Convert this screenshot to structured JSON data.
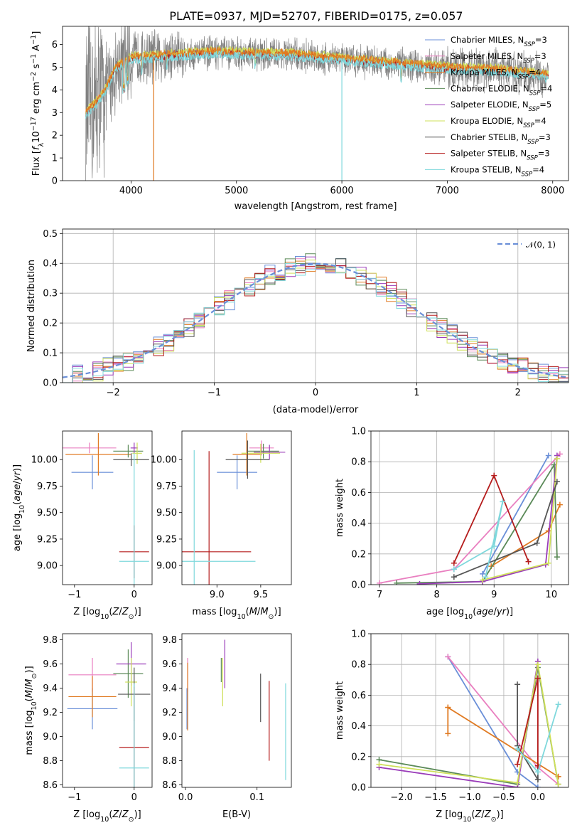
{
  "figure": {
    "title": "PLATE=0937, MJD=52707, FIBERID=0175, z=0.057"
  },
  "colors": [
    "#6a8fd8",
    "#e97fc0",
    "#e07a22",
    "#5b8a58",
    "#9a3cb9",
    "#cfe05a",
    "#555555",
    "#b51c1c",
    "#7fd8dc"
  ],
  "legend": [
    {
      "label": "Chabrier MILES, N",
      "sub": "SSP",
      "suffix": "=3"
    },
    {
      "label": "Salpeter MILES, N",
      "sub": "SSP",
      "suffix": "=3"
    },
    {
      "label": "Kroupa MILES, N",
      "sub": "SSP",
      "suffix": "=4"
    },
    {
      "label": "Chabrier ELODIE, N",
      "sub": "SSP",
      "suffix": "=4"
    },
    {
      "label": "Salpeter ELODIE, N",
      "sub": "SSP",
      "suffix": "=5"
    },
    {
      "label": "Kroupa ELODIE, N",
      "sub": "SSP",
      "suffix": "=4"
    },
    {
      "label": "Chabrier STELIB, N",
      "sub": "SSP",
      "suffix": "=3"
    },
    {
      "label": "Salpeter STELIB, N",
      "sub": "SSP",
      "suffix": "=3"
    },
    {
      "label": "Kroupa STELIB, N",
      "sub": "SSP",
      "suffix": "=4"
    }
  ],
  "normal_legend": "𝒩(0, 1)",
  "chart_data": [
    {
      "type": "line",
      "id": "spectrum",
      "xlabel": "wavelength [Angstrom, rest frame]",
      "ylabel": "Flux [f_λ 10^-17 erg cm^-2 s^-1 A^-1]",
      "xlim": [
        3350,
        8150
      ],
      "ylim": [
        0,
        6.8
      ],
      "xticks": [
        4000,
        5000,
        6000,
        7000,
        8000
      ],
      "yticks": [
        0,
        1,
        2,
        3,
        4,
        5,
        6
      ],
      "grid": false,
      "legend_position": "top-right",
      "continuum_knots": {
        "x": [
          3570,
          3650,
          3750,
          3850,
          3950,
          4000,
          4200,
          4500,
          4800,
          5000,
          5500,
          6000,
          6500,
          7000,
          7500,
          7800,
          7950
        ],
        "y": [
          3.0,
          3.3,
          3.9,
          4.9,
          5.3,
          5.4,
          5.45,
          5.55,
          5.65,
          5.6,
          5.55,
          5.35,
          5.15,
          4.95,
          4.85,
          4.7,
          4.6
        ]
      },
      "deep_features_x": [
        4215,
        6000
      ]
    },
    {
      "type": "histogram",
      "id": "residuals",
      "xlabel": "(data-model)/error",
      "ylabel": "Normed distribution",
      "xlim": [
        -2.5,
        2.5
      ],
      "ylim": [
        0,
        0.515
      ],
      "xticks": [
        -2,
        -1,
        0,
        1,
        2
      ],
      "yticks": [
        0.0,
        0.1,
        0.2,
        0.3,
        0.4,
        0.5
      ],
      "bin_width": 0.1,
      "grid": true,
      "legend_position": "top-right",
      "reference_curve": "normal(0,1)"
    },
    {
      "type": "errorbar",
      "id": "age_vs_Z",
      "xlabel": "Z [log10(Z/Z⊙)]",
      "ylabel": "age [log10(age/yr)]",
      "xlim": [
        -1.2,
        0.3
      ],
      "ylim": [
        8.82,
        10.27
      ],
      "xticks": [
        -1,
        0
      ],
      "yticks": [
        9.0,
        9.25,
        9.5,
        9.75,
        10.0
      ],
      "points": [
        {
          "x": -0.7,
          "y": 9.88,
          "xerr": 0.35,
          "yerr": 0.16
        },
        {
          "x": -0.75,
          "y": 10.11,
          "xerr": 0.45,
          "yerr": 0.05
        },
        {
          "x": -0.6,
          "y": 10.05,
          "xerr": 0.55,
          "yerr": 0.2
        },
        {
          "x": -0.1,
          "y": 10.08,
          "xerr": 0.25,
          "yerr": 0.06
        },
        {
          "x": 0.0,
          "y": 10.11,
          "xerr": 0.06,
          "yerr": 0.05
        },
        {
          "x": 0.05,
          "y": 10.06,
          "xerr": 0.08,
          "yerr": 0.1
        },
        {
          "x": -0.05,
          "y": 10.0,
          "xerr": 0.3,
          "yerr": 0.06
        },
        {
          "x": 0.0,
          "y": 9.13,
          "xerr": 0.25,
          "yerr": 0.25
        },
        {
          "x": 0.0,
          "y": 9.04,
          "xerr": 0.25,
          "yerr": 1.02
        }
      ]
    },
    {
      "type": "errorbar",
      "id": "age_vs_mass",
      "xlabel": "mass [log10(M/M⊙)]",
      "ylabel": "",
      "xlim": [
        8.6,
        9.85
      ],
      "ylim": [
        8.82,
        10.27
      ],
      "xticks": [
        9.0,
        9.5
      ],
      "yticks": [
        9.0,
        9.25,
        9.5,
        9.75,
        10.0
      ],
      "points": [
        {
          "x": 9.23,
          "y": 9.88,
          "xerr": 0.23,
          "yerr": 0.16
        },
        {
          "x": 9.51,
          "y": 10.11,
          "xerr": 0.14,
          "yerr": 0.07
        },
        {
          "x": 9.34,
          "y": 10.05,
          "xerr": 0.16,
          "yerr": 0.2
        },
        {
          "x": 9.53,
          "y": 10.08,
          "xerr": 0.18,
          "yerr": 0.07
        },
        {
          "x": 9.6,
          "y": 10.07,
          "xerr": 0.18,
          "yerr": 0.07
        },
        {
          "x": 9.5,
          "y": 10.06,
          "xerr": 0.22,
          "yerr": 0.09
        },
        {
          "x": 9.35,
          "y": 10.0,
          "xerr": 0.25,
          "yerr": 0.18
        },
        {
          "x": 8.91,
          "y": 9.13,
          "xerr": 0.48,
          "yerr": 0.95
        },
        {
          "x": 8.74,
          "y": 9.04,
          "xerr": 0.7,
          "yerr": 1.05
        }
      ]
    },
    {
      "type": "line",
      "id": "massweight_vs_age",
      "xlabel": "age [log10(age/yr)]",
      "ylabel": "mass weight",
      "xlim": [
        6.85,
        10.3
      ],
      "ylim": [
        0,
        1
      ],
      "xticks": [
        7,
        8,
        9,
        10
      ],
      "yticks": [
        0.0,
        0.2,
        0.4,
        0.6,
        0.8,
        1.0
      ],
      "grid": true,
      "series": [
        {
          "x": [
            8.8,
            9.95
          ],
          "y": [
            0.07,
            0.84
          ]
        },
        {
          "x": [
            7.0,
            8.3,
            10.15
          ],
          "y": [
            0.01,
            0.1,
            0.85
          ]
        },
        {
          "x": [
            8.95,
            9.95,
            10.15
          ],
          "y": [
            0.12,
            0.35,
            0.52
          ]
        },
        {
          "x": [
            7.3,
            8.8,
            10.05,
            10.1
          ],
          "y": [
            0.01,
            0.02,
            0.78,
            0.18
          ]
        },
        {
          "x": [
            7.7,
            8.8,
            9.9,
            10.1
          ],
          "y": [
            0.005,
            0.02,
            0.13,
            0.84
          ]
        },
        {
          "x": [
            8.8,
            9.95,
            10.1
          ],
          "y": [
            0.03,
            0.14,
            0.82
          ]
        },
        {
          "x": [
            8.3,
            9.75,
            10.1
          ],
          "y": [
            0.05,
            0.27,
            0.67
          ]
        },
        {
          "x": [
            8.3,
            9.0,
            9.6
          ],
          "y": [
            0.14,
            0.71,
            0.15
          ]
        },
        {
          "x": [
            8.3,
            9.0,
            9.15,
            8.85
          ],
          "y": [
            0.1,
            0.25,
            0.54,
            0.05
          ]
        }
      ]
    },
    {
      "type": "errorbar",
      "id": "mass_vs_Z",
      "xlabel": "Z [log10(Z/Z⊙)]",
      "ylabel": "mass [log10(M/M⊙)]",
      "xlim": [
        -1.2,
        0.3
      ],
      "ylim": [
        8.58,
        9.85
      ],
      "xticks": [
        -1,
        0
      ],
      "yticks": [
        8.6,
        8.8,
        9.0,
        9.2,
        9.4,
        9.6,
        9.8
      ],
      "points": [
        {
          "x": -0.7,
          "y": 9.23,
          "xerr": 0.42,
          "yerr": 0.17
        },
        {
          "x": -0.7,
          "y": 9.51,
          "xerr": 0.4,
          "yerr": 0.14
        },
        {
          "x": -0.7,
          "y": 9.33,
          "xerr": 0.4,
          "yerr": 0.17
        },
        {
          "x": -0.1,
          "y": 9.52,
          "xerr": 0.25,
          "yerr": 0.2
        },
        {
          "x": -0.05,
          "y": 9.6,
          "xerr": 0.25,
          "yerr": 0.18
        },
        {
          "x": -0.05,
          "y": 9.45,
          "xerr": 0.1,
          "yerr": 0.2
        },
        {
          "x": 0.0,
          "y": 9.35,
          "xerr": 0.27,
          "yerr": 0.22
        },
        {
          "x": 0.0,
          "y": 8.91,
          "xerr": 0.25,
          "yerr": 0.5
        },
        {
          "x": 0.0,
          "y": 8.74,
          "xerr": 0.25,
          "yerr": 0.7
        }
      ]
    },
    {
      "type": "errorbar",
      "id": "mass_vs_ebv",
      "xlabel": "E(B-V)",
      "ylabel": "",
      "xlim": [
        -0.005,
        0.148
      ],
      "ylim": [
        8.58,
        9.85
      ],
      "xticks": [
        0.0,
        0.1
      ],
      "yticks": [
        8.6,
        8.8,
        9.0,
        9.2,
        9.4,
        9.6,
        9.8
      ],
      "points": [
        {
          "x": 0.002,
          "y": 9.23,
          "yerr": 0.17
        },
        {
          "x": 0.003,
          "y": 9.51,
          "yerr": 0.14
        },
        {
          "x": 0.003,
          "y": 9.33,
          "yerr": 0.28
        },
        {
          "x": 0.05,
          "y": 9.55,
          "yerr": 0.1
        },
        {
          "x": 0.055,
          "y": 9.6,
          "yerr": 0.2
        },
        {
          "x": 0.052,
          "y": 9.45,
          "yerr": 0.2
        },
        {
          "x": 0.105,
          "y": 9.32,
          "yerr": 0.2
        },
        {
          "x": 0.117,
          "y": 9.13,
          "yerr": 0.33
        },
        {
          "x": 0.14,
          "y": 9.04,
          "yerr": 0.4
        }
      ]
    },
    {
      "type": "line",
      "id": "massweight_vs_Z",
      "xlabel": "Z [log10(Z/Z⊙)]",
      "ylabel": "mass weight",
      "xlim": [
        -2.45,
        0.45
      ],
      "ylim": [
        0,
        1
      ],
      "xticks": [
        -2.0,
        -1.5,
        -1.0,
        -0.5,
        0.0
      ],
      "yticks": [
        0.0,
        0.2,
        0.4,
        0.6,
        0.8,
        1.0
      ],
      "grid": true,
      "series": [
        {
          "x": [
            -1.32,
            -0.3,
            0.0
          ],
          "y": [
            0.85,
            0.1,
            0.0
          ]
        },
        {
          "x": [
            -1.32,
            0.0,
            0.3
          ],
          "y": [
            0.85,
            0.13,
            0.02
          ]
        },
        {
          "x": [
            -1.32,
            -1.32,
            -1.32,
            0.3,
            0.3
          ],
          "y": [
            0.52,
            0.35,
            0.52,
            0.07,
            0.07
          ]
        },
        {
          "x": [
            -2.33,
            -0.3,
            0.0,
            0.3
          ],
          "y": [
            0.18,
            0.02,
            0.78,
            0.02
          ]
        },
        {
          "x": [
            -2.33,
            -0.3,
            0.0
          ],
          "y": [
            0.13,
            0.0,
            0.82
          ]
        },
        {
          "x": [
            -2.33,
            -0.3,
            0.0,
            0.3
          ],
          "y": [
            0.15,
            0.03,
            0.8,
            0.02
          ]
        },
        {
          "x": [
            -0.3,
            -0.3,
            0.0,
            0.0
          ],
          "y": [
            0.67,
            0.27,
            0.05,
            0.14
          ]
        },
        {
          "x": [
            -0.3,
            0.0,
            0.0
          ],
          "y": [
            0.15,
            0.71,
            0.14
          ]
        },
        {
          "x": [
            -0.3,
            0.0,
            0.3
          ],
          "y": [
            0.25,
            0.1,
            0.54
          ]
        }
      ]
    }
  ]
}
